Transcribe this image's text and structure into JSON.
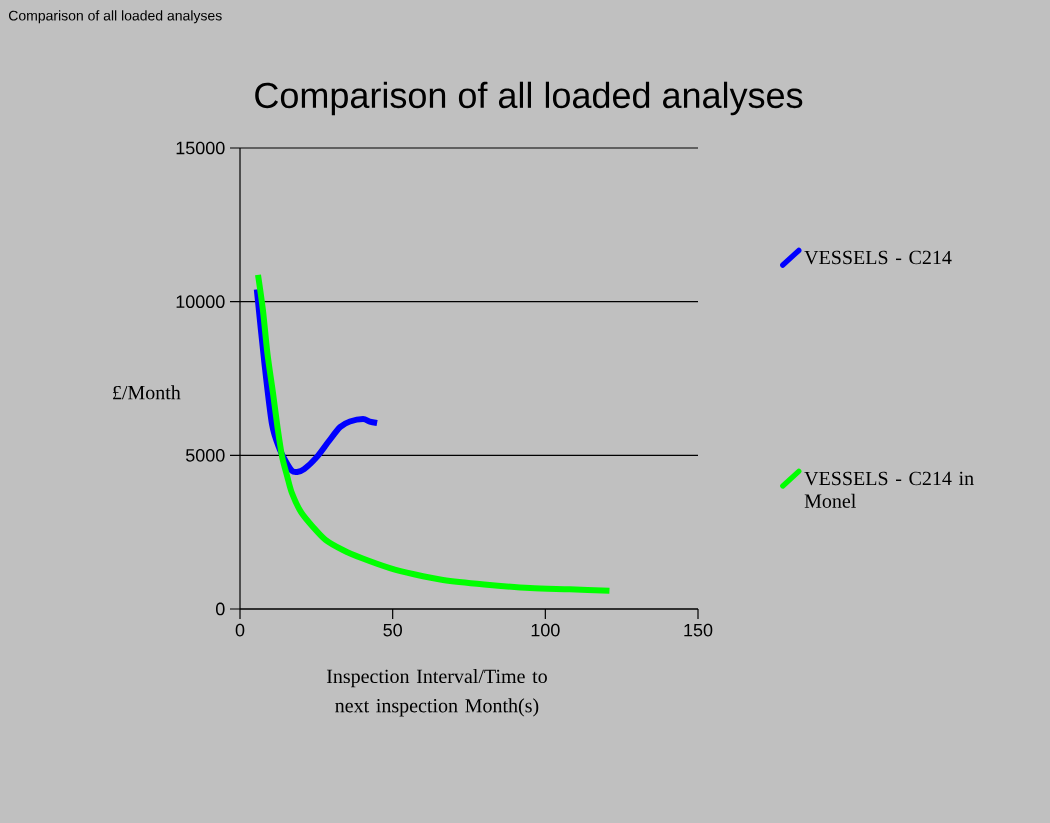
{
  "chart_data": {
    "type": "line",
    "title": "Comparison of all loaded analyses",
    "annotations": [
      "Comparison of all loaded analyses"
    ],
    "xlabel": "Inspection Interval/Time to next inspection Month(s)",
    "ylabel": "£/Month",
    "xlim": [
      0,
      150
    ],
    "xticks": [
      0,
      50,
      100,
      150
    ],
    "ylim": [
      0,
      15000
    ],
    "yticks": [
      0,
      5000,
      10000,
      15000
    ],
    "grid": "y",
    "legend": "right",
    "marker": "none",
    "line_style": "solid",
    "series": [
      {
        "name": "VESSELS - C214",
        "color": "#0000ff",
        "x": [
          5.5,
          8,
          10.5,
          13,
          15,
          17,
          18.7,
          21,
          25.2,
          29,
          32.8,
          36,
          40.3,
          42.5,
          44.9
        ],
        "values": [
          10400,
          8000,
          6000,
          5200,
          4800,
          4500,
          4460,
          4550,
          4950,
          5450,
          5920,
          6100,
          6180,
          6100,
          6050
        ]
      },
      {
        "name": "VESSELS - C214 in Monel",
        "color": "#00ff00",
        "x": [
          5.9,
          7.5,
          9,
          10.8,
          12.3,
          13.8,
          15.5,
          17,
          20,
          23.9,
          28,
          33.7,
          40,
          49.1,
          57,
          66.5,
          80,
          95,
          108,
          121
        ],
        "values": [
          10870,
          9730,
          8300,
          7030,
          5900,
          4950,
          4300,
          3775,
          3150,
          2670,
          2250,
          1920,
          1650,
          1330,
          1130,
          945,
          800,
          680,
          640,
          590
        ]
      }
    ]
  }
}
